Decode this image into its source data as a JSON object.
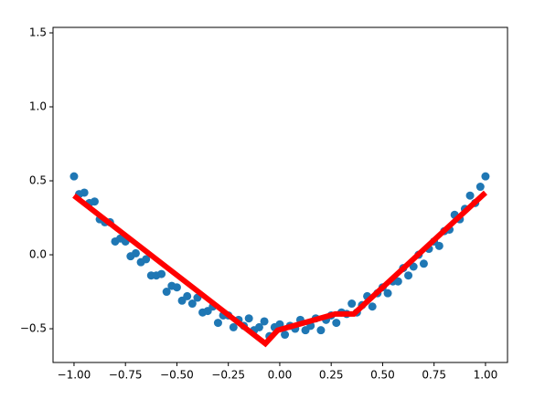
{
  "chart_data": {
    "type": "scatter",
    "xlim": [
      -1.102,
      1.107
    ],
    "ylim": [
      -0.728,
      1.537
    ],
    "xticks": [
      {
        "value": -1.0,
        "label": "−1.00"
      },
      {
        "value": -0.75,
        "label": "−0.75"
      },
      {
        "value": -0.5,
        "label": "−0.50"
      },
      {
        "value": -0.25,
        "label": "−0.25"
      },
      {
        "value": 0.0,
        "label": "0.00"
      },
      {
        "value": 0.25,
        "label": "0.25"
      },
      {
        "value": 0.5,
        "label": "0.50"
      },
      {
        "value": 0.75,
        "label": "0.75"
      },
      {
        "value": 1.0,
        "label": "1.00"
      }
    ],
    "yticks": [
      {
        "value": -0.5,
        "label": "−0.5"
      },
      {
        "value": 0.0,
        "label": "0.0"
      },
      0.5,
      {
        "value": 1.0,
        "label": "1.0"
      },
      1.5
    ],
    "grid": false,
    "series": [
      {
        "type": "scatter",
        "color": "#1f77b4",
        "x": [
          -1.0,
          -0.975,
          -0.95,
          -0.925,
          -0.9,
          -0.875,
          -0.85,
          -0.825,
          -0.8,
          -0.775,
          -0.75,
          -0.725,
          -0.7,
          -0.675,
          -0.65,
          -0.625,
          -0.6,
          -0.575,
          -0.55,
          -0.525,
          -0.5,
          -0.475,
          -0.45,
          -0.425,
          -0.4,
          -0.375,
          -0.35,
          -0.325,
          -0.3,
          -0.275,
          -0.25,
          -0.225,
          -0.2,
          -0.175,
          -0.15,
          -0.125,
          -0.1,
          -0.075,
          -0.05,
          -0.025,
          0.0,
          0.025,
          0.05,
          0.075,
          0.1,
          0.125,
          0.15,
          0.175,
          0.2,
          0.225,
          0.25,
          0.275,
          0.3,
          0.325,
          0.35,
          0.375,
          0.4,
          0.425,
          0.45,
          0.475,
          0.5,
          0.525,
          0.55,
          0.575,
          0.6,
          0.625,
          0.65,
          0.675,
          0.7,
          0.725,
          0.75,
          0.775,
          0.8,
          0.825,
          0.85,
          0.875,
          0.9,
          0.925,
          0.95,
          0.975,
          1.0
        ],
        "values": [
          0.53,
          0.41,
          0.42,
          0.35,
          0.36,
          0.24,
          0.22,
          0.22,
          0.09,
          0.11,
          0.09,
          -0.01,
          0.01,
          -0.05,
          -0.03,
          -0.14,
          -0.14,
          -0.13,
          -0.25,
          -0.21,
          -0.22,
          -0.31,
          -0.28,
          -0.33,
          -0.29,
          -0.39,
          -0.38,
          -0.35,
          -0.46,
          -0.41,
          -0.41,
          -0.49,
          -0.44,
          -0.48,
          -0.43,
          -0.51,
          -0.49,
          -0.45,
          -0.55,
          -0.49,
          -0.47,
          -0.54,
          -0.48,
          -0.5,
          -0.44,
          -0.51,
          -0.48,
          -0.43,
          -0.51,
          -0.44,
          -0.41,
          -0.46,
          -0.39,
          -0.4,
          -0.33,
          -0.39,
          -0.34,
          -0.28,
          -0.35,
          -0.26,
          -0.22,
          -0.26,
          -0.18,
          -0.18,
          -0.09,
          -0.14,
          -0.08,
          0.0,
          -0.06,
          0.04,
          0.09,
          0.06,
          0.16,
          0.17,
          0.27,
          0.24,
          0.31,
          0.4,
          0.35,
          0.46,
          0.53
        ]
      },
      {
        "type": "line",
        "color": "#ff0000",
        "x": [
          -1.0,
          -0.07,
          -0.01,
          0.27,
          0.36,
          1.0
        ],
        "values": [
          0.4,
          -0.6,
          -0.51,
          -0.4,
          -0.4,
          0.42
        ]
      }
    ]
  }
}
